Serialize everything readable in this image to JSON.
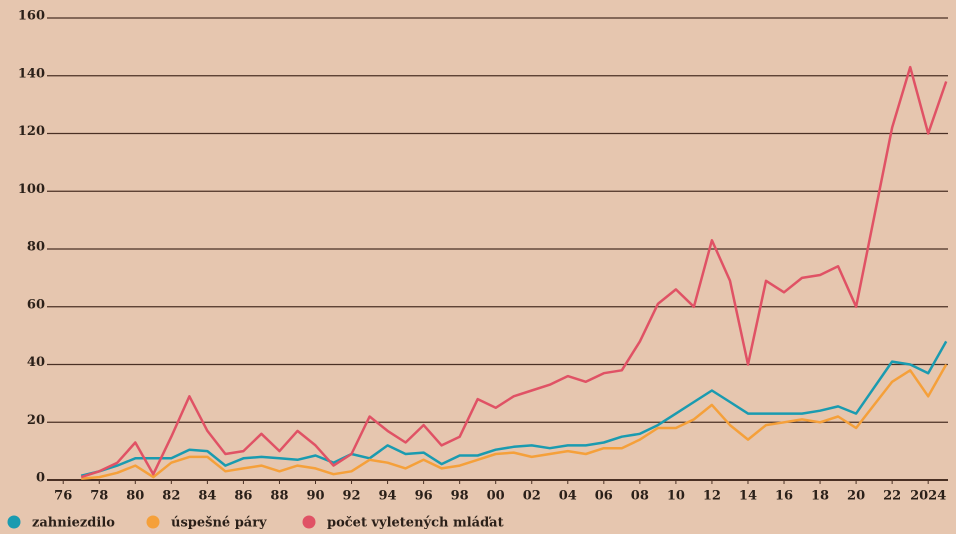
{
  "chart_data": {
    "type": "line",
    "x": [
      1977,
      1978,
      1979,
      1980,
      1981,
      1982,
      1983,
      1984,
      1985,
      1986,
      1987,
      1988,
      1989,
      1990,
      1991,
      1992,
      1993,
      1994,
      1995,
      1996,
      1997,
      1998,
      1999,
      2000,
      2001,
      2002,
      2003,
      2004,
      2005,
      2006,
      2007,
      2008,
      2009,
      2010,
      2011,
      2012,
      2013,
      2014,
      2015,
      2016,
      2017,
      2018,
      2019,
      2020,
      2021,
      2022,
      2023,
      2024,
      2025
    ],
    "series": [
      {
        "name": "zahniezdilo",
        "color": "#1a9bb0",
        "values": [
          1.5,
          3,
          5,
          7.5,
          7.5,
          7.5,
          10.5,
          10,
          5,
          7.5,
          8,
          7.5,
          7,
          8.5,
          6,
          9,
          7.5,
          12,
          9,
          9.5,
          5.5,
          8.5,
          8.5,
          10.5,
          11.5,
          12,
          11,
          12,
          12,
          13,
          15,
          16,
          19,
          23,
          27,
          31,
          27,
          23,
          23,
          23,
          23,
          24,
          25.5,
          23,
          32,
          41,
          40,
          37,
          48
        ]
      },
      {
        "name": "úspešné páry",
        "color": "#f5a03a",
        "values": [
          0.5,
          1,
          2.5,
          5,
          1,
          6,
          8,
          8,
          3,
          4,
          5,
          3,
          5,
          4,
          2,
          3,
          7,
          6,
          4,
          7,
          4,
          5,
          7,
          9,
          9.5,
          8,
          9,
          10,
          9,
          11,
          11,
          14,
          18,
          18,
          21,
          26,
          19,
          14,
          19,
          20,
          21,
          20,
          22,
          18,
          26,
          34,
          38,
          29,
          40
        ]
      },
      {
        "name": "počet vyletených mláďat",
        "color": "#e05265",
        "values": [
          1,
          3,
          6,
          13,
          2,
          15,
          29,
          17,
          9,
          10,
          16,
          10,
          17,
          12,
          5,
          9,
          22,
          17,
          13,
          19,
          12,
          15,
          28,
          25,
          29,
          31,
          33,
          36,
          34,
          37,
          38,
          48,
          61,
          66,
          60,
          83,
          69,
          40,
          69,
          65,
          70,
          71,
          74,
          60,
          91,
          122,
          143,
          120,
          138
        ]
      }
    ],
    "xlim": [
      1975.1,
      2025.1
    ],
    "xticks": [
      {
        "value": 1976,
        "label": "76"
      },
      {
        "value": 1978,
        "label": "78"
      },
      {
        "value": 1980,
        "label": "80"
      },
      {
        "value": 1982,
        "label": "82"
      },
      {
        "value": 1984,
        "label": "84"
      },
      {
        "value": 1986,
        "label": "86"
      },
      {
        "value": 1988,
        "label": "88"
      },
      {
        "value": 1990,
        "label": "90"
      },
      {
        "value": 1992,
        "label": "92"
      },
      {
        "value": 1994,
        "label": "94"
      },
      {
        "value": 1996,
        "label": "96"
      },
      {
        "value": 1998,
        "label": "98"
      },
      {
        "value": 2000,
        "label": "00"
      },
      {
        "value": 2002,
        "label": "02"
      },
      {
        "value": 2004,
        "label": "04"
      },
      {
        "value": 2006,
        "label": "06"
      },
      {
        "value": 2008,
        "label": "08"
      },
      {
        "value": 2010,
        "label": "10"
      },
      {
        "value": 2012,
        "label": "12"
      },
      {
        "value": 2014,
        "label": "14"
      },
      {
        "value": 2016,
        "label": "16"
      },
      {
        "value": 2018,
        "label": "18"
      },
      {
        "value": 2020,
        "label": "20"
      },
      {
        "value": 2022,
        "label": "22"
      },
      2024
    ],
    "ylim": [
      0,
      160
    ],
    "yticks": [
      0,
      20,
      40,
      60,
      80,
      100,
      120,
      140,
      160
    ],
    "grid": true,
    "legend": "bottom"
  }
}
